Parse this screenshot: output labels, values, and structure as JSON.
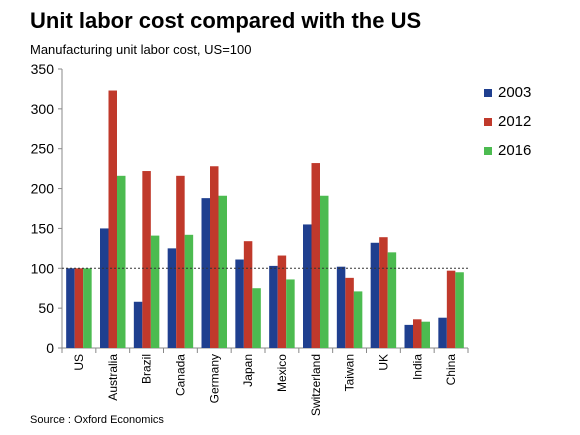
{
  "title": "Unit labor cost compared with the US",
  "subtitle": "Manufacturing unit labor cost, US=100",
  "source": "Source : Oxford Economics",
  "chart_data": {
    "type": "bar",
    "categories": [
      "US",
      "Australia",
      "Brazil",
      "Canada",
      "Germany",
      "Japan",
      "Mexico",
      "Switzerland",
      "Taiwan",
      "UK",
      "India",
      "China"
    ],
    "series": [
      {
        "name": "2003",
        "color": "#1f3f8f",
        "values": [
          100,
          150,
          58,
          125,
          188,
          111,
          103,
          155,
          102,
          132,
          29,
          38
        ]
      },
      {
        "name": "2012",
        "color": "#c0392b",
        "values": [
          100,
          323,
          222,
          216,
          228,
          134,
          116,
          232,
          88,
          139,
          36,
          97
        ]
      },
      {
        "name": "2016",
        "color": "#4cbb50",
        "values": [
          100,
          216,
          141,
          142,
          191,
          75,
          86,
          191,
          71,
          120,
          33,
          95
        ]
      }
    ],
    "ylim": [
      0,
      350
    ],
    "yticks": [
      0,
      50,
      100,
      150,
      200,
      250,
      300,
      350
    ],
    "reference_line": 100,
    "legend_position": "right",
    "xlabel": "",
    "ylabel": ""
  }
}
